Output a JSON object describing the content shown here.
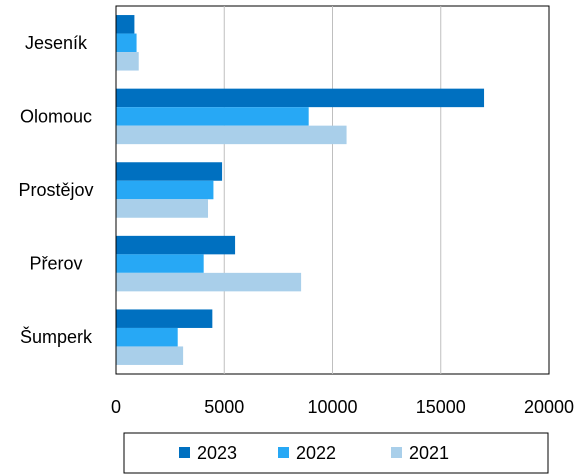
{
  "chart_data": {
    "type": "bar",
    "orientation": "horizontal",
    "categories": [
      "Jeseník",
      "Olomouc",
      "Prostějov",
      "Přerov",
      "Šumperk"
    ],
    "series": [
      {
        "name": "2023",
        "color": "#0070C0",
        "values": [
          850,
          17000,
          4900,
          5500,
          4450
        ]
      },
      {
        "name": "2022",
        "color": "#27A8F5",
        "values": [
          950,
          8900,
          4500,
          4050,
          2850
        ]
      },
      {
        "name": "2021",
        "color": "#A9CFEA",
        "values": [
          1050,
          10650,
          4250,
          8550,
          3100
        ]
      }
    ],
    "xlim": [
      0,
      20000
    ],
    "xticks": [
      "0",
      "5000",
      "10000",
      "15000",
      "20000"
    ],
    "grid": "vertical",
    "legend": "bottom",
    "title": "",
    "xlabel": "",
    "ylabel": ""
  }
}
